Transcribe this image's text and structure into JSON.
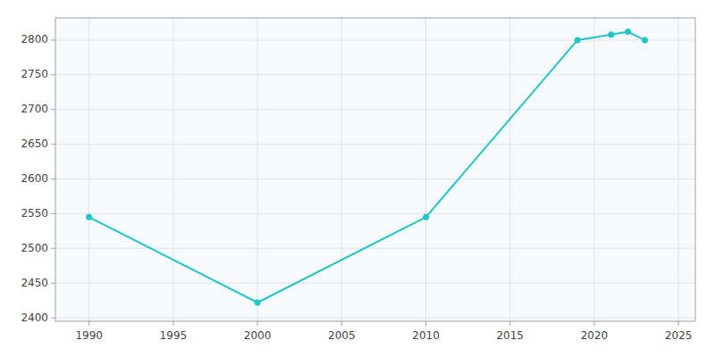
{
  "chart_data": {
    "type": "line",
    "x": [
      1990,
      2000,
      2010,
      2019,
      2021,
      2022,
      2023
    ],
    "values": [
      2545,
      2422,
      2545,
      2800,
      2808,
      2812,
      2800
    ],
    "color": "#20c5c5",
    "marker": "circle",
    "xlim": [
      1988,
      2026
    ],
    "ylim": [
      2395,
      2832
    ],
    "xticks": [
      1990,
      1995,
      2000,
      2005,
      2010,
      2015,
      2020,
      2025
    ],
    "yticks": [
      2400,
      2450,
      2500,
      2550,
      2600,
      2650,
      2700,
      2750,
      2800
    ],
    "grid": true
  }
}
